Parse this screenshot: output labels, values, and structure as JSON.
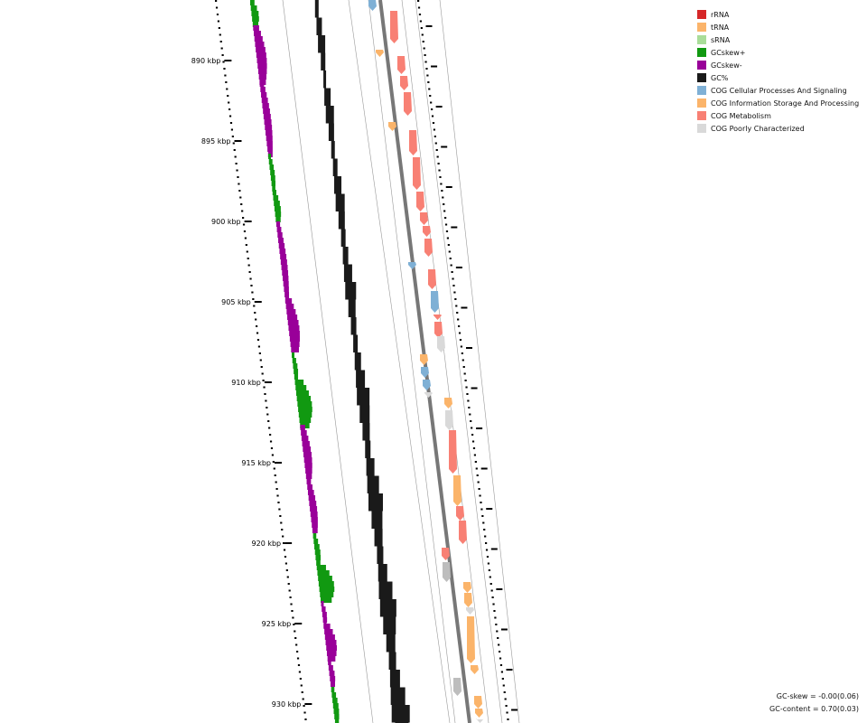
{
  "legend": {
    "items": [
      {
        "label": "rRNA",
        "color": "#d62728"
      },
      {
        "label": "tRNA",
        "color": "#fbb46a"
      },
      {
        "label": "sRNA",
        "color": "#a9dd99"
      },
      {
        "label": "GCskew+",
        "color": "#119911"
      },
      {
        "label": "GCskew-",
        "color": "#990099"
      },
      {
        "label": "GC%",
        "color": "#1a1a1a"
      },
      {
        "label": "COG Cellular Processes And Signaling",
        "color": "#7fb0d5"
      },
      {
        "label": "COG Information Storage And Processing",
        "color": "#fbb46a"
      },
      {
        "label": "COG Metabolism",
        "color": "#f88074"
      },
      {
        "label": "COG Poorly Characterized",
        "color": "#d9d9d9"
      }
    ]
  },
  "stats": {
    "gc_skew": "GC-skew = -0.00(0.06)",
    "gc_content": "GC-content = 0.70(0.03)"
  },
  "ticks": {
    "unit": "kbp",
    "labels": [
      "890 kbp",
      "895 kbp",
      "900 kbp",
      "905 kbp",
      "910 kbp",
      "915 kbp",
      "920 kbp",
      "925 kbp",
      "930 kbp"
    ]
  },
  "colors": {
    "backbone": "#777777",
    "guide": "#9a9a9a",
    "ticks": "#000000",
    "gc": "#1a1a1a",
    "skew_pos": "#119911",
    "skew_neg": "#990099",
    "metabolism": "#f88074",
    "cellular": "#7fb0d5",
    "information": "#fbb46a",
    "poorly": "#d9d9d9",
    "unclassified": "#bdbdbd"
  }
}
